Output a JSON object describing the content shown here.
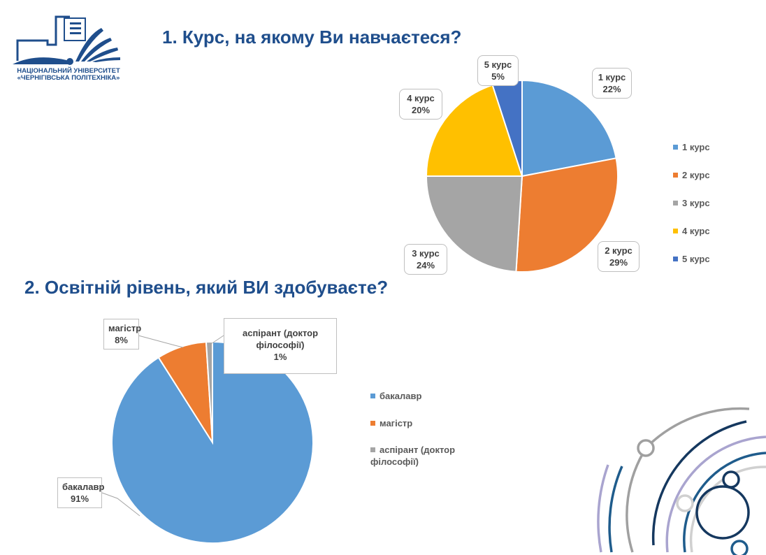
{
  "logo": {
    "line1": "НАЦІОНАЛЬНИЙ УНІВЕРСИТЕТ",
    "line2": "«ЧЕРНІГІВСЬКА ПОЛІТЕХНІКА»"
  },
  "chart_data": [
    {
      "type": "pie",
      "title": "1. Курс, на якому Ви навчаєтеся?",
      "categories": [
        "1 курс",
        "2 курс",
        "3 курс",
        "4 курс",
        "5 курс"
      ],
      "values": [
        22,
        29,
        24,
        20,
        5
      ],
      "labels": [
        "22%",
        "29%",
        "24%",
        "20%",
        "5%"
      ],
      "colors": [
        "#5B9BD5",
        "#ED7D31",
        "#A5A5A5",
        "#FFC000",
        "#4472C4"
      ],
      "legend": "right"
    },
    {
      "type": "pie",
      "title": "2. Освітній рівень, який ВИ здобуваєте?",
      "categories": [
        "бакалавр",
        "магістр",
        "аспірант (доктор філософії)"
      ],
      "values": [
        91,
        8,
        1
      ],
      "labels": [
        "91%",
        "8%",
        "1%"
      ],
      "colors": [
        "#5B9BD5",
        "#ED7D31",
        "#A5A5A5"
      ],
      "legend": "right"
    }
  ]
}
